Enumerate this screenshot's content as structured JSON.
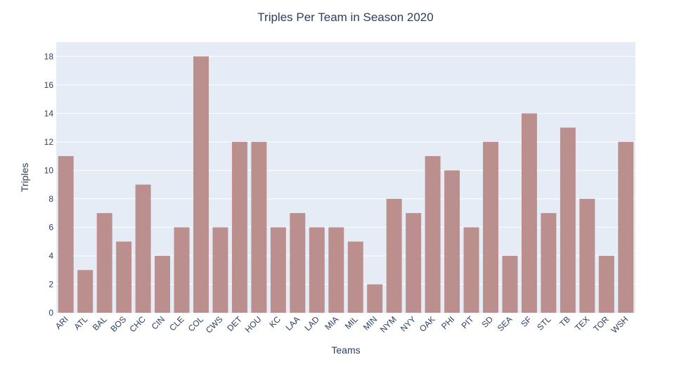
{
  "chart_data": {
    "type": "bar",
    "title": "Triples Per Team in Season 2020",
    "xlabel": "Teams",
    "ylabel": "Triples",
    "categories": [
      "ARI",
      "ATL",
      "BAL",
      "BOS",
      "CHC",
      "CIN",
      "CLE",
      "COL",
      "CWS",
      "DET",
      "HOU",
      "KC",
      "LAA",
      "LAD",
      "MIA",
      "MIL",
      "MIN",
      "NYM",
      "NYY",
      "OAK",
      "PHI",
      "PIT",
      "SD",
      "SEA",
      "SF",
      "STL",
      "TB",
      "TEX",
      "TOR",
      "WSH"
    ],
    "values": [
      11,
      3,
      7,
      5,
      9,
      4,
      6,
      18,
      6,
      12,
      12,
      6,
      7,
      6,
      6,
      5,
      2,
      8,
      7,
      11,
      10,
      6,
      12,
      4,
      14,
      7,
      13,
      8,
      4,
      12
    ],
    "ylim": [
      0,
      19
    ],
    "yticks": [
      0,
      2,
      4,
      6,
      8,
      10,
      12,
      14,
      16,
      18
    ],
    "grid": true,
    "legend": "none",
    "colors": {
      "bar": "#bc8f8f",
      "plot_bg": "#e5ecf6",
      "grid": "#ffffff",
      "text": "#2a3f5f"
    }
  }
}
